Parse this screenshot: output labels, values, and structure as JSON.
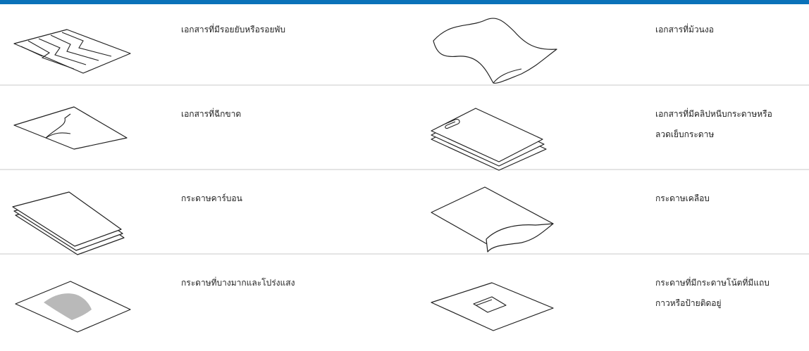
{
  "rows": [
    {
      "left": [
        "เอกสารที่มีรอยยับหรือรอยพับ"
      ],
      "right": [
        "เอกสารที่ม้วนงอ"
      ]
    },
    {
      "left": [
        "เอกสารที่ฉีกขาด"
      ],
      "right": [
        "เอกสารที่มีคลิปหนีบกระดาษหรือ",
        "ลวดเย็บกระดาษ"
      ]
    },
    {
      "left": [
        "กระดาษคาร์บอน"
      ],
      "right": [
        "กระดาษเคลือบ"
      ]
    },
    {
      "left": [
        "กระดาษที่บางมากและโปร่งแสง"
      ],
      "right": [
        "กระดาษที่มีกระดาษโน้ตที่มีแถบ",
        "กาวหรือป้ายติดอยู่"
      ]
    }
  ]
}
